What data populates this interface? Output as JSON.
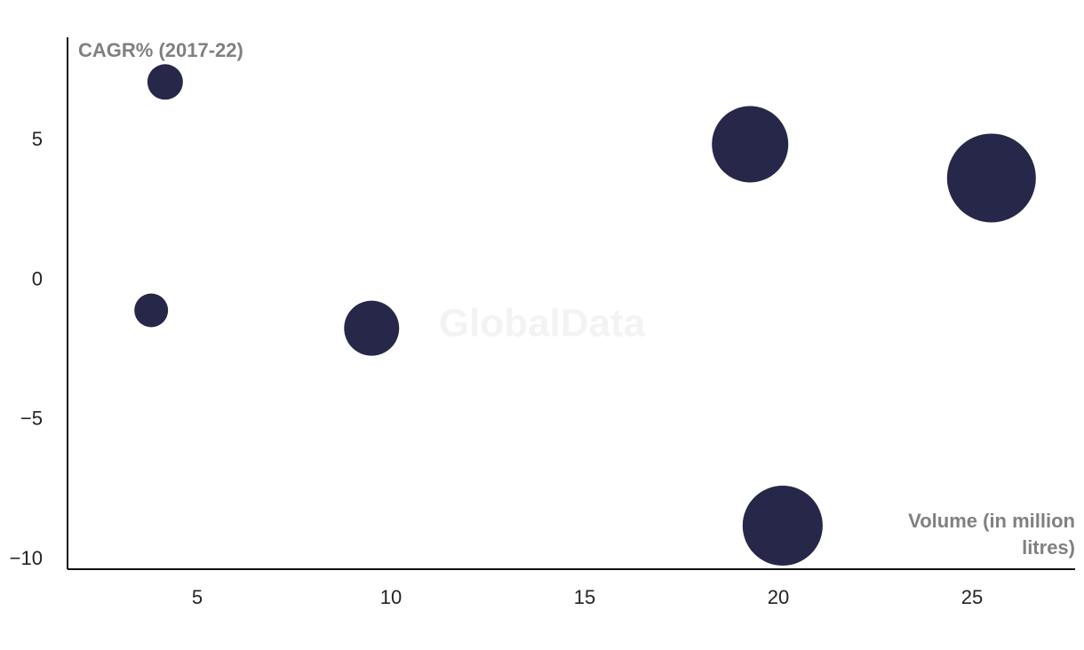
{
  "chart_data": {
    "type": "bubble",
    "y_label": "CAGR% (2017-22)",
    "x_label": "Volume (in million litres)",
    "watermark": "GlobalData",
    "x": [
      4.17,
      3.81,
      9.5,
      19.27,
      25.5,
      20.11
    ],
    "series": [
      {
        "color": "#272849",
        "values": [
          7.1,
          -1.08,
          -1.72,
          4.87,
          3.66,
          -8.79
        ],
        "sizes": [
          4,
          3.6,
          9.6,
          18.5,
          25,
          20.3
        ]
      }
    ],
    "xlim": [
      1.65,
      27.66
    ],
    "ylim": [
      -10.35,
      8.7
    ],
    "xticks": [
      5,
      10,
      15,
      20,
      25
    ],
    "yticks": [
      5,
      0,
      {
        "value": -5,
        "label": "−5"
      },
      {
        "value": -10,
        "label": "−10"
      }
    ]
  }
}
